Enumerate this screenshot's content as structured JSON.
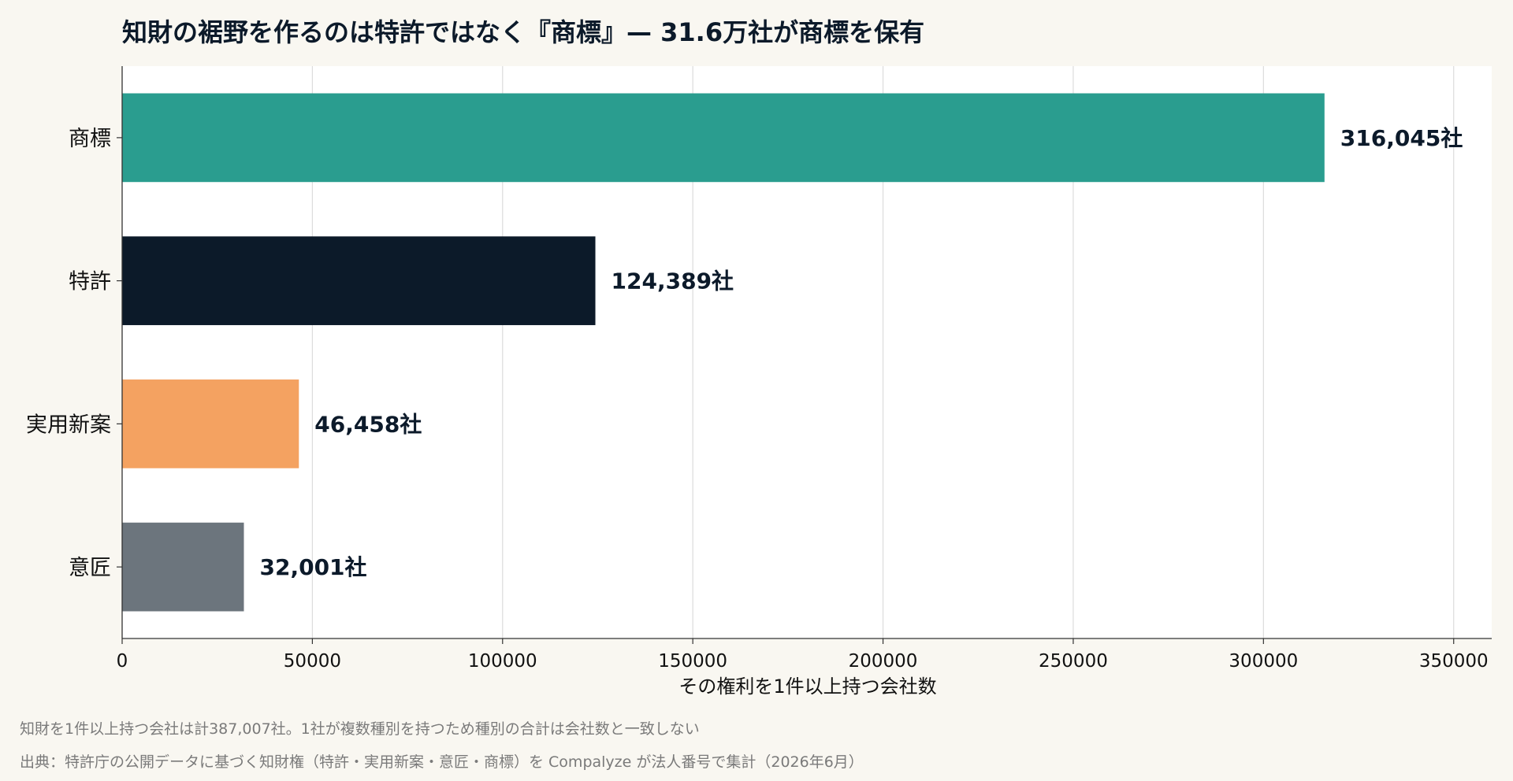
{
  "chart_data": {
    "type": "bar",
    "orientation": "horizontal",
    "title": "知財の裾野を作るのは特許ではなく『商標』— 31.6万社が商標を保有",
    "categories": [
      "商標",
      "特許",
      "実用新案",
      "意匠"
    ],
    "values": [
      316045,
      124389,
      46458,
      32001
    ],
    "value_labels": [
      "316,045社",
      "124,389社",
      "46,458社",
      "32,001社"
    ],
    "colors": [
      "#2a9d8f",
      "#0c1a29",
      "#f4a261",
      "#6c757d"
    ],
    "xlabel": "その権利を1件以上持つ会社数",
    "xlim": [
      0,
      360000
    ],
    "xticks": [
      0,
      50000,
      100000,
      150000,
      200000,
      250000,
      300000,
      350000
    ],
    "grid": true,
    "legend": "none"
  },
  "notes": {
    "note1": "知財を1件以上持つ会社は計387,007社。1社が複数種別を持つため種別の合計は会社数と一致しない",
    "note2": "出典：特許庁の公開データに基づく知財権（特許・実用新案・意匠・商標）を Compalyze が法人番号で集計（2026年6月）"
  }
}
